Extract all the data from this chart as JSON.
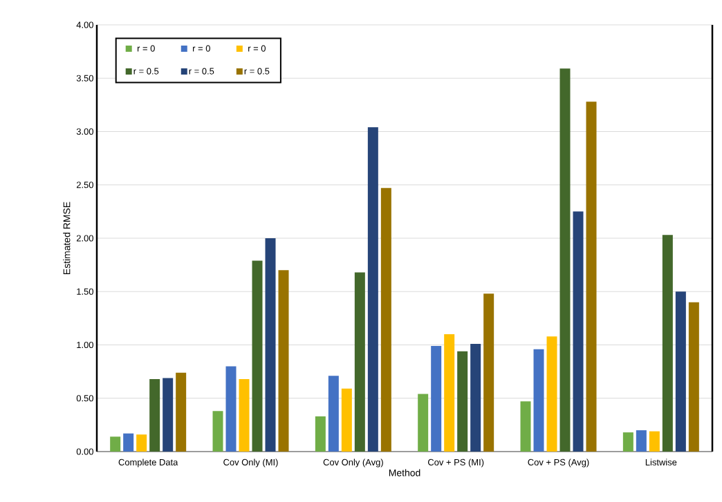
{
  "chart_data": {
    "type": "bar",
    "xlabel": "Method",
    "ylabel": "Estimated RMSE",
    "categories": [
      "Complete Data",
      "Cov Only (MI)",
      "Cov Only (Avg)",
      "Cov + PS (MI)",
      "Cov + PS (Avg)",
      "Listwise"
    ],
    "series": [
      {
        "name": "r = 0",
        "color": "#70ad47",
        "values": [
          0.14,
          0.38,
          0.33,
          0.54,
          0.47,
          0.18
        ]
      },
      {
        "name": "r = 0",
        "color": "#4472c4",
        "values": [
          0.17,
          0.8,
          0.71,
          0.99,
          0.96,
          0.2
        ]
      },
      {
        "name": "r = 0",
        "color": "#ffc000",
        "values": [
          0.16,
          0.68,
          0.59,
          1.1,
          1.08,
          0.19
        ]
      },
      {
        "name": "r = 0.5",
        "color": "#43682b",
        "values": [
          0.68,
          1.79,
          1.68,
          0.94,
          3.59,
          2.03
        ]
      },
      {
        "name": "r = 0.5",
        "color": "#264478",
        "values": [
          0.69,
          2.0,
          3.04,
          1.01,
          2.25,
          1.5
        ]
      },
      {
        "name": "r = 0.5",
        "color": "#997300",
        "values": [
          0.74,
          1.7,
          2.47,
          1.48,
          3.28,
          1.4
        ]
      }
    ],
    "ylim": [
      0,
      4
    ],
    "yticks": [
      {
        "value": 0,
        "label": "0.00"
      },
      {
        "value": 0.5,
        "label": "0.50"
      },
      {
        "value": 1,
        "label": "1.00"
      },
      {
        "value": 1.5,
        "label": "1.50"
      },
      {
        "value": 2,
        "label": "2.00"
      },
      {
        "value": 2.5,
        "label": "2.50"
      },
      {
        "value": 3,
        "label": "3.00"
      },
      {
        "value": 3.5,
        "label": "3.50"
      },
      {
        "value": 4,
        "label": "4.00"
      }
    ],
    "grid": "y",
    "legend": "top left"
  }
}
